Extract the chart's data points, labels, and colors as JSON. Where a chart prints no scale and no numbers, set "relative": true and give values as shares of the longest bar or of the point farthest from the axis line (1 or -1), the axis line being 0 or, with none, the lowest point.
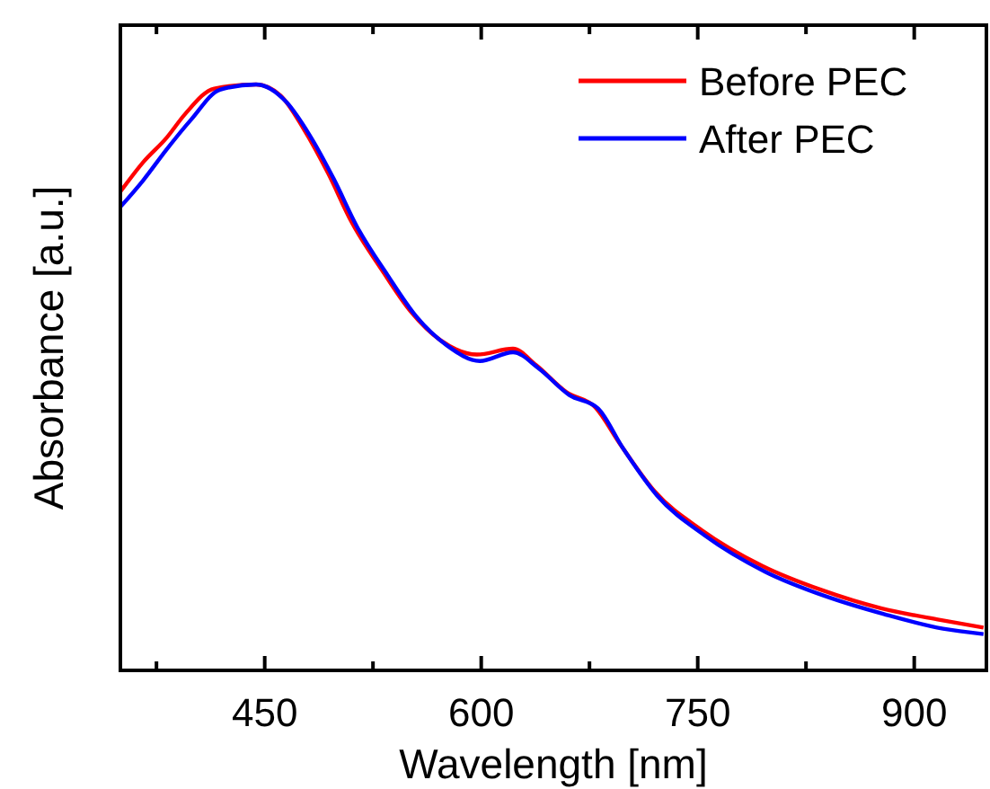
{
  "chart_data": {
    "type": "line",
    "xlabel": "Wavelength [nm]",
    "ylabel": "Absorbance [a.u.]",
    "relative": true,
    "xlim": [
      350,
      950
    ],
    "xticks": [
      {
        "value": 375,
        "label": null
      },
      450,
      {
        "value": 525,
        "label": null
      },
      600,
      {
        "value": 675,
        "label": null
      },
      750,
      {
        "value": 825,
        "label": null
      },
      900
    ],
    "legend": "top right",
    "line_style": "solid",
    "series": [
      {
        "name": "Before PEC",
        "color": "#ff0000",
        "x": [
          350,
          366,
          382,
          395,
          415,
          444,
          461,
          477,
          494,
          510,
          531,
          551,
          572,
          597,
          622,
          638,
          659,
          679,
          696,
          720,
          753,
          795,
          836,
          877,
          918,
          948
        ],
        "values": [
          0.817,
          0.868,
          0.909,
          0.95,
          0.993,
          1.0,
          0.981,
          0.924,
          0.848,
          0.766,
          0.684,
          0.613,
          0.563,
          0.539,
          0.549,
          0.521,
          0.475,
          0.449,
          0.387,
          0.306,
          0.239,
          0.178,
          0.137,
          0.106,
          0.086,
          0.073
        ]
      },
      {
        "name": "After PEC",
        "color": "#0000ff",
        "x": [
          350,
          366,
          382,
          399,
          419,
          444,
          465,
          481,
          498,
          514,
          535,
          555,
          576,
          599,
          622,
          640,
          661,
          681,
          698,
          722,
          755,
          797,
          838,
          879,
          920,
          948
        ],
        "values": [
          0.791,
          0.837,
          0.889,
          0.94,
          0.991,
          1.0,
          0.97,
          0.914,
          0.838,
          0.757,
          0.675,
          0.604,
          0.555,
          0.528,
          0.543,
          0.515,
          0.47,
          0.447,
          0.38,
          0.298,
          0.23,
          0.168,
          0.127,
          0.096,
          0.071,
          0.062
        ]
      }
    ]
  }
}
